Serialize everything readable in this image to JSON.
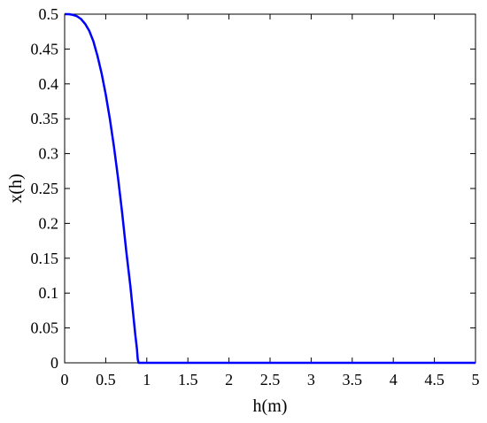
{
  "chart_data": {
    "type": "line",
    "title": "",
    "xlabel": "h(m)",
    "ylabel": "x(h)",
    "xlim": [
      0,
      5
    ],
    "ylim": [
      0,
      0.5
    ],
    "xticks": [
      "0",
      "0.5",
      "1",
      "1.5",
      "2",
      "2.5",
      "3",
      "3.5",
      "4",
      "4.5",
      "5"
    ],
    "yticks": [
      "0",
      "0.05",
      "0.1",
      "0.15",
      "0.2",
      "0.25",
      "0.3",
      "0.35",
      "0.4",
      "0.45",
      "0.5"
    ],
    "grid": false,
    "legend": false,
    "series": [
      {
        "color": "#0000ff",
        "x": [
          0,
          0.05,
          0.1,
          0.15,
          0.2,
          0.25,
          0.3,
          0.35,
          0.4,
          0.45,
          0.5,
          0.55,
          0.6,
          0.65,
          0.7,
          0.75,
          0.8,
          0.83,
          0.86,
          0.88,
          0.885,
          0.89,
          0.9,
          1.0,
          1.5,
          2.0,
          2.5,
          3.0,
          3.5,
          4.0,
          4.5,
          5.0
        ],
        "y": [
          0.5,
          0.5,
          0.499,
          0.497,
          0.493,
          0.486,
          0.476,
          0.461,
          0.44,
          0.415,
          0.385,
          0.35,
          0.31,
          0.265,
          0.215,
          0.16,
          0.11,
          0.075,
          0.04,
          0.02,
          0.012,
          0.005,
          0,
          0,
          0,
          0,
          0,
          0,
          0,
          0,
          0,
          0
        ]
      }
    ]
  }
}
